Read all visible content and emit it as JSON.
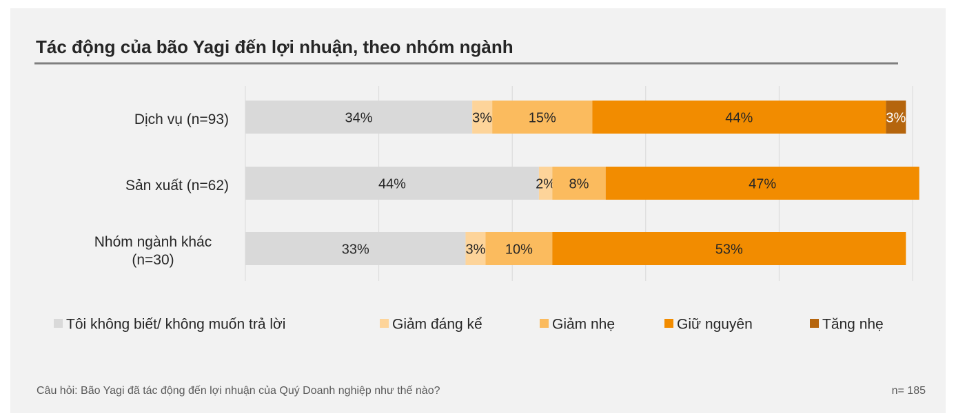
{
  "chart_data": {
    "type": "stacked-bar-horizontal",
    "title": "Tác động của bão Yagi đến lợi nhuận, theo nhóm ngành",
    "categories": [
      "Dịch vụ (n=93)",
      "Sản xuất (n=62)",
      "Nhóm ngành khác (n=30)"
    ],
    "series": [
      {
        "name": "Tôi không biết/ không muốn trả lời",
        "color": "#d9d9d9",
        "values": [
          34,
          44,
          33
        ],
        "value_labels": [
          "34%",
          "44%",
          "33%"
        ]
      },
      {
        "name": "Giảm đáng kể",
        "color": "#fdd49a",
        "values": [
          3,
          2,
          3
        ],
        "value_labels": [
          "3%",
          "2%",
          "3%"
        ]
      },
      {
        "name": "Giảm nhẹ",
        "color": "#fbbb5e",
        "values": [
          15,
          8,
          10
        ],
        "value_labels": [
          "15%",
          "8%",
          "10%"
        ]
      },
      {
        "name": "Giữ nguyên",
        "color": "#f28c00",
        "values": [
          44,
          47,
          53
        ],
        "value_labels": [
          "44%",
          "47%",
          "53%"
        ]
      },
      {
        "name": "Tăng nhẹ",
        "color": "#b5650d",
        "values": [
          3,
          null,
          null
        ],
        "value_labels": [
          "3%",
          null,
          null
        ]
      }
    ],
    "xlim": [
      0,
      100
    ],
    "xticks": [
      0,
      20,
      40,
      60,
      80,
      100
    ],
    "grid": true,
    "legend": "bottom",
    "note": "Câu hỏi: Bão Yagi đã tác động đến lợi nhuận của Quý Doanh nghiệp như thế nào?",
    "sample": "n= 185"
  }
}
